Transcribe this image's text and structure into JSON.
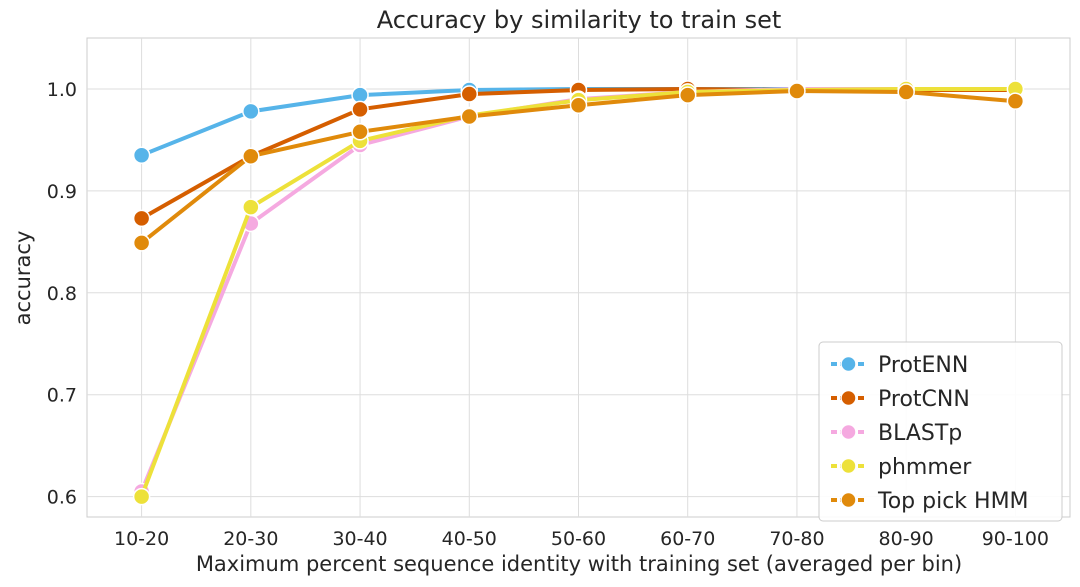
{
  "chart_data": {
    "type": "line",
    "title": "Accuracy by similarity to train set",
    "xlabel": "Maximum percent sequence identity with training set (averaged per bin)",
    "ylabel": "accuracy",
    "categories": [
      "10-20",
      "20-30",
      "30-40",
      "40-50",
      "50-60",
      "60-70",
      "70-80",
      "80-90",
      "90-100"
    ],
    "ylim": [
      0.58,
      1.05
    ],
    "yticks": [
      "0.6",
      "0.7",
      "0.8",
      "0.9",
      "1.0"
    ],
    "grid": true,
    "legend_position": "lower-right",
    "series": [
      {
        "name": "ProtENN",
        "color": "#56b4e9",
        "values": [
          0.935,
          0.978,
          0.994,
          0.999,
          1.0,
          1.0,
          1.0,
          1.0,
          1.0
        ]
      },
      {
        "name": "ProtCNN",
        "color": "#d55e00",
        "values": [
          0.873,
          0.934,
          0.98,
          0.995,
          0.999,
          1.0,
          0.999,
          0.999,
          0.999
        ]
      },
      {
        "name": "BLASTp",
        "color": "#f5a9e0",
        "values": [
          0.605,
          0.868,
          0.945,
          0.973,
          0.99,
          0.997,
          1.0,
          1.0,
          1.0
        ]
      },
      {
        "name": "phmmer",
        "color": "#ede13a",
        "values": [
          0.6,
          0.884,
          0.949,
          0.974,
          0.989,
          0.997,
          0.999,
          1.0,
          1.0
        ]
      },
      {
        "name": "Top pick HMM",
        "color": "#e08a0b",
        "values": [
          0.849,
          0.934,
          0.958,
          0.973,
          0.984,
          0.994,
          0.998,
          0.997,
          0.988
        ]
      }
    ]
  }
}
